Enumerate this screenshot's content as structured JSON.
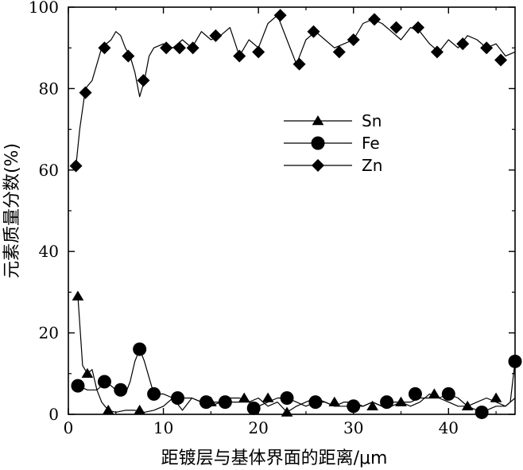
{
  "chart_data": {
    "type": "line",
    "xlabel": "距镀层与基体界面的距离/μm",
    "ylabel": "元素质量分数(%)",
    "xlim": [
      0,
      47
    ],
    "ylim": [
      0,
      100
    ],
    "xticks": [
      0,
      10,
      20,
      30,
      40
    ],
    "yticks": [
      0,
      20,
      40,
      60,
      80,
      100
    ],
    "grid": false,
    "legend_position": "center",
    "series": [
      {
        "name": "Sn",
        "marker": "triangle",
        "color": "#000000",
        "x": [
          1.0,
          1.5,
          2.0,
          2.5,
          3.0,
          3.5,
          4.2,
          5.0,
          6.0,
          7.0,
          8.0,
          9.0,
          10.0,
          11.0,
          12.0,
          13.0,
          14.0,
          15.0,
          16.0,
          17.0,
          18.0,
          19.0,
          20.0,
          21.0,
          22.0,
          23.0,
          24.0,
          25.0,
          26.0,
          27.0,
          28.0,
          29.0,
          30.0,
          31.0,
          32.0,
          33.0,
          34.0,
          35.0,
          36.0,
          37.0,
          38.0,
          39.0,
          40.0,
          41.0,
          42.0,
          43.0,
          44.0,
          45.0,
          46.0,
          47.0
        ],
        "y": [
          29,
          12,
          10,
          11,
          6,
          3,
          1,
          0.5,
          1,
          1,
          0.5,
          1,
          2,
          4,
          1,
          4,
          3,
          2,
          3,
          4,
          4,
          3,
          4,
          2,
          3,
          0.5,
          2,
          3,
          4,
          3,
          2,
          3,
          3,
          2,
          3,
          2,
          3,
          3,
          2,
          3,
          5,
          4,
          3,
          2,
          2,
          3,
          4,
          3,
          2,
          4
        ],
        "marker_x": [
          1.0,
          2.0,
          4.2,
          7.5,
          11.5,
          15.0,
          18.5,
          21.0,
          23.0,
          26.0,
          28.0,
          32.0,
          35.0,
          38.5,
          42.0,
          45.0
        ],
        "marker_y": [
          29,
          10,
          1,
          1,
          4,
          3,
          4,
          4,
          0.5,
          3,
          3,
          2,
          3,
          5,
          2,
          4
        ]
      },
      {
        "name": "Fe",
        "marker": "circle",
        "color": "#000000",
        "x": [
          1.0,
          2.0,
          3.0,
          3.5,
          4.0,
          5.0,
          5.5,
          6.0,
          6.5,
          7.0,
          7.5,
          8.0,
          8.5,
          9.0,
          10.0,
          11.0,
          12.0,
          13.0,
          14.0,
          15.0,
          16.0,
          17.0,
          18.0,
          19.0,
          20.0,
          21.0,
          22.0,
          23.0,
          24.0,
          25.0,
          26.0,
          27.0,
          28.0,
          29.0,
          30.0,
          31.0,
          32.0,
          33.0,
          34.0,
          35.0,
          36.0,
          37.0,
          38.0,
          39.0,
          40.0,
          41.0,
          42.0,
          43.0,
          44.0,
          45.0,
          46.0,
          46.5,
          47.0
        ],
        "y": [
          7,
          6,
          6,
          7,
          8,
          6,
          5,
          5,
          8,
          13,
          16,
          13,
          9,
          5,
          5,
          4,
          4,
          4,
          3,
          3,
          3,
          3,
          3,
          3,
          2,
          3,
          4,
          4,
          3,
          2,
          3,
          3,
          2,
          2,
          2,
          2,
          3,
          2,
          2,
          3,
          3,
          4,
          4,
          4,
          5,
          4,
          2,
          1,
          1,
          2,
          2,
          3,
          13
        ],
        "marker_x": [
          1.0,
          3.8,
          5.5,
          7.5,
          9.0,
          11.5,
          14.5,
          16.5,
          19.5,
          23.0,
          26.0,
          30.0,
          33.5,
          36.5,
          40.0,
          43.5,
          47.0
        ],
        "marker_y": [
          7,
          8,
          6,
          16,
          5,
          4,
          3,
          3,
          1.5,
          4,
          3,
          2,
          3,
          5,
          5,
          0.5,
          13
        ]
      },
      {
        "name": "Zn",
        "marker": "diamond",
        "color": "#000000",
        "x": [
          0.8,
          1.2,
          1.8,
          2.5,
          3.0,
          3.5,
          4.5,
          5.0,
          5.5,
          6.0,
          6.5,
          7.0,
          7.5,
          8.0,
          8.5,
          9.0,
          10.0,
          11.0,
          12.0,
          13.0,
          14.0,
          15.0,
          16.0,
          17.0,
          18.0,
          19.0,
          20.0,
          21.0,
          22.0,
          23.0,
          24.0,
          25.0,
          26.0,
          27.0,
          28.0,
          29.0,
          30.0,
          31.0,
          32.0,
          33.0,
          34.0,
          35.0,
          36.0,
          37.0,
          38.0,
          39.0,
          40.0,
          41.0,
          42.0,
          43.0,
          44.0,
          45.0,
          46.0,
          47.0
        ],
        "y": [
          61,
          70,
          80,
          82,
          86,
          90,
          92,
          94,
          93,
          90,
          88,
          84,
          78,
          82,
          88,
          90,
          91,
          90,
          92,
          90,
          94,
          92,
          93,
          95,
          88,
          92,
          90,
          96,
          98,
          92,
          86,
          92,
          94,
          92,
          90,
          91,
          92,
          96,
          97,
          96,
          94,
          92,
          95,
          94,
          91,
          89,
          92,
          90,
          93,
          92,
          90,
          91,
          88,
          89
        ],
        "marker_x": [
          0.8,
          1.8,
          3.8,
          6.3,
          7.9,
          10.3,
          11.7,
          13.1,
          15.5,
          18.0,
          20.0,
          22.3,
          24.3,
          25.8,
          28.5,
          30.0,
          32.2,
          34.5,
          36.8,
          38.8,
          41.5,
          44.0,
          45.5
        ],
        "marker_y": [
          61,
          79,
          90,
          88,
          82,
          90,
          90,
          90,
          93,
          88,
          89,
          98,
          86,
          94,
          89,
          92,
          97,
          95,
          95,
          89,
          91,
          90,
          87
        ]
      }
    ]
  }
}
